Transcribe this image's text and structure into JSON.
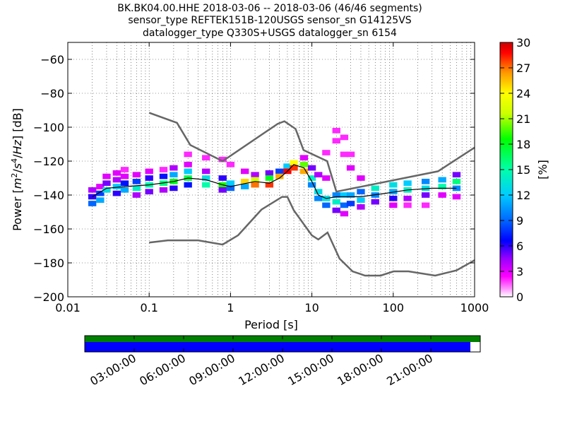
{
  "chart_data": {
    "type": "heatmap",
    "title_lines": [
      "BK.BK04.00.HHE   2018-03-06 -- 2018-03-06  (46/46 segments)",
      "sensor_type REFTEK151B-120USGS sensor_sn G14125VS",
      "datalogger_type Q330S+USGS datalogger_sn 6154"
    ],
    "xlabel": "Period [s]",
    "ylabel": "Power [m²/s⁴/Hz] [dB]",
    "x_scale": "log",
    "xlim": [
      0.01,
      1000
    ],
    "ylim": [
      -200,
      -50
    ],
    "x_ticks": [
      {
        "value": 0.01,
        "label": "0.01"
      },
      {
        "value": 0.1,
        "label": "0.1"
      },
      {
        "value": 1,
        "label": "1"
      },
      {
        "value": 10,
        "label": "10"
      },
      {
        "value": 100,
        "label": "100"
      },
      {
        "value": 1000,
        "label": "1000"
      }
    ],
    "y_ticks": [
      {
        "value": -60,
        "label": "−60"
      },
      {
        "value": -80,
        "label": "−80"
      },
      {
        "value": -100,
        "label": "−100"
      },
      {
        "value": -120,
        "label": "−120"
      },
      {
        "value": -140,
        "label": "−140"
      },
      {
        "value": -160,
        "label": "−160"
      },
      {
        "value": -180,
        "label": "−180"
      },
      {
        "value": -200,
        "label": "−200"
      }
    ],
    "grid": true,
    "colorbar": {
      "label": "[%]",
      "min": 0,
      "max": 30,
      "ticks": [
        "0",
        "3",
        "6",
        "9",
        "12",
        "15",
        "18",
        "21",
        "24",
        "27",
        "30"
      ]
    },
    "noise_models": [
      {
        "name": "NHNM",
        "points": [
          [
            0.1,
            -91.5
          ],
          [
            0.22,
            -97.4
          ],
          [
            0.32,
            -110.5
          ],
          [
            0.8,
            -120
          ],
          [
            3.8,
            -98
          ],
          [
            4.6,
            -96.5
          ],
          [
            6.3,
            -101
          ],
          [
            7.9,
            -113.5
          ],
          [
            15.4,
            -120
          ],
          [
            20,
            -138
          ],
          [
            354.8,
            -126
          ],
          [
            1000,
            -112
          ]
        ]
      },
      {
        "name": "NLNM",
        "points": [
          [
            0.1,
            -168
          ],
          [
            0.17,
            -166.7
          ],
          [
            0.4,
            -166.7
          ],
          [
            0.8,
            -169.2
          ],
          [
            1.24,
            -163.7
          ],
          [
            2.4,
            -148.6
          ],
          [
            4.3,
            -141.1
          ],
          [
            5,
            -141.1
          ],
          [
            6,
            -149
          ],
          [
            10,
            -163.8
          ],
          [
            12,
            -166.2
          ],
          [
            15.6,
            -162.1
          ],
          [
            21.9,
            -177.5
          ],
          [
            31.6,
            -185
          ],
          [
            45,
            -187.5
          ],
          [
            70,
            -187.5
          ],
          [
            101,
            -185
          ],
          [
            154,
            -185
          ],
          [
            328,
            -187.5
          ],
          [
            600,
            -184.4
          ],
          [
            1000,
            -178.4
          ]
        ]
      }
    ],
    "mean_curve": [
      [
        0.02,
        -141
      ],
      [
        0.03,
        -136
      ],
      [
        0.05,
        -135
      ],
      [
        0.1,
        -134
      ],
      [
        0.2,
        -132
      ],
      [
        0.3,
        -130
      ],
      [
        0.5,
        -131
      ],
      [
        0.8,
        -134
      ],
      [
        1,
        -135
      ],
      [
        2,
        -132
      ],
      [
        3,
        -133
      ],
      [
        4,
        -130
      ],
      [
        5,
        -126
      ],
      [
        6,
        -122
      ],
      [
        8,
        -124
      ],
      [
        10,
        -132
      ],
      [
        12,
        -140
      ],
      [
        15,
        -142
      ],
      [
        20,
        -141
      ],
      [
        40,
        -141
      ],
      [
        80,
        -139
      ],
      [
        150,
        -137
      ],
      [
        300,
        -136
      ],
      [
        600,
        -136
      ]
    ],
    "psd_cells": [
      {
        "period": 0.02,
        "db": -141,
        "percent": 6
      },
      {
        "period": 0.02,
        "db": -137,
        "percent": 4
      },
      {
        "period": 0.02,
        "db": -145,
        "percent": 9
      },
      {
        "period": 0.025,
        "db": -139,
        "percent": 8
      },
      {
        "period": 0.025,
        "db": -135,
        "percent": 3
      },
      {
        "period": 0.025,
        "db": -143,
        "percent": 11
      },
      {
        "period": 0.03,
        "db": -133,
        "percent": 5
      },
      {
        "period": 0.03,
        "db": -137,
        "percent": 13
      },
      {
        "period": 0.03,
        "db": -129,
        "percent": 3
      },
      {
        "period": 0.04,
        "db": -131,
        "percent": 4
      },
      {
        "period": 0.04,
        "db": -135,
        "percent": 12
      },
      {
        "period": 0.04,
        "db": -127,
        "percent": 3
      },
      {
        "period": 0.04,
        "db": -139,
        "percent": 6
      },
      {
        "period": 0.05,
        "db": -129,
        "percent": 3
      },
      {
        "period": 0.05,
        "db": -133,
        "percent": 7
      },
      {
        "period": 0.05,
        "db": -137,
        "percent": 11
      },
      {
        "period": 0.05,
        "db": -125,
        "percent": 2
      },
      {
        "period": 0.07,
        "db": -128,
        "percent": 3
      },
      {
        "period": 0.07,
        "db": -132,
        "percent": 8
      },
      {
        "period": 0.07,
        "db": -136,
        "percent": 14
      },
      {
        "period": 0.07,
        "db": -140,
        "percent": 4
      },
      {
        "period": 0.1,
        "db": -126,
        "percent": 3
      },
      {
        "period": 0.1,
        "db": -130,
        "percent": 6
      },
      {
        "period": 0.1,
        "db": -134,
        "percent": 15
      },
      {
        "period": 0.1,
        "db": -138,
        "percent": 5
      },
      {
        "period": 0.15,
        "db": -125,
        "percent": 2
      },
      {
        "period": 0.15,
        "db": -129,
        "percent": 7
      },
      {
        "period": 0.15,
        "db": -133,
        "percent": 16
      },
      {
        "period": 0.15,
        "db": -137,
        "percent": 4
      },
      {
        "period": 0.2,
        "db": -124,
        "percent": 4
      },
      {
        "period": 0.2,
        "db": -128,
        "percent": 11
      },
      {
        "period": 0.2,
        "db": -132,
        "percent": 18
      },
      {
        "period": 0.2,
        "db": -136,
        "percent": 6
      },
      {
        "period": 0.3,
        "db": -116,
        "percent": 2
      },
      {
        "period": 0.3,
        "db": -122,
        "percent": 3
      },
      {
        "period": 0.3,
        "db": -126,
        "percent": 12
      },
      {
        "period": 0.3,
        "db": -130,
        "percent": 17
      },
      {
        "period": 0.3,
        "db": -134,
        "percent": 7
      },
      {
        "period": 0.5,
        "db": -118,
        "percent": 2
      },
      {
        "period": 0.5,
        "db": -126,
        "percent": 4
      },
      {
        "period": 0.5,
        "db": -130,
        "percent": 13
      },
      {
        "period": 0.5,
        "db": -134,
        "percent": 15
      },
      {
        "period": 0.8,
        "db": -119,
        "percent": 2
      },
      {
        "period": 0.8,
        "db": -130,
        "percent": 6
      },
      {
        "period": 0.8,
        "db": -134,
        "percent": 19
      },
      {
        "period": 0.8,
        "db": -137,
        "percent": 5
      },
      {
        "period": 1,
        "db": -122,
        "percent": 2
      },
      {
        "period": 1,
        "db": -133,
        "percent": 12
      },
      {
        "period": 1,
        "db": -136,
        "percent": 9
      },
      {
        "period": 1.5,
        "db": -126,
        "percent": 3
      },
      {
        "period": 1.5,
        "db": -132,
        "percent": 25
      },
      {
        "period": 1.5,
        "db": -135,
        "percent": 11
      },
      {
        "period": 2,
        "db": -128,
        "percent": 4
      },
      {
        "period": 2,
        "db": -131,
        "percent": 22
      },
      {
        "period": 2,
        "db": -134,
        "percent": 27
      },
      {
        "period": 3,
        "db": -127,
        "percent": 5
      },
      {
        "period": 3,
        "db": -130,
        "percent": 18
      },
      {
        "period": 3,
        "db": -134,
        "percent": 28
      },
      {
        "period": 4,
        "db": -126,
        "percent": 8
      },
      {
        "period": 4,
        "db": -129,
        "percent": 26
      },
      {
        "period": 5,
        "db": -123,
        "percent": 12
      },
      {
        "period": 5,
        "db": -126,
        "percent": 29
      },
      {
        "period": 6,
        "db": -121,
        "percent": 24
      },
      {
        "period": 6,
        "db": -124,
        "percent": 28
      },
      {
        "period": 8,
        "db": -122,
        "percent": 20
      },
      {
        "period": 8,
        "db": -126,
        "percent": 26
      },
      {
        "period": 8,
        "db": -118,
        "percent": 3
      },
      {
        "period": 10,
        "db": -124,
        "percent": 5
      },
      {
        "period": 10,
        "db": -130,
        "percent": 14
      },
      {
        "period": 10,
        "db": -134,
        "percent": 10
      },
      {
        "period": 12,
        "db": -128,
        "percent": 4
      },
      {
        "period": 12,
        "db": -138,
        "percent": 13
      },
      {
        "period": 12,
        "db": -142,
        "percent": 10
      },
      {
        "period": 15,
        "db": -115,
        "percent": 2
      },
      {
        "period": 15,
        "db": -142,
        "percent": 13
      },
      {
        "period": 15,
        "db": -146,
        "percent": 9
      },
      {
        "period": 15,
        "db": -130,
        "percent": 3
      },
      {
        "period": 20,
        "db": -102,
        "percent": 2
      },
      {
        "period": 20,
        "db": -108,
        "percent": 2
      },
      {
        "period": 20,
        "db": -140,
        "percent": 10
      },
      {
        "period": 20,
        "db": -144,
        "percent": 14
      },
      {
        "period": 20,
        "db": -149,
        "percent": 5
      },
      {
        "period": 25,
        "db": -106,
        "percent": 2
      },
      {
        "period": 25,
        "db": -116,
        "percent": 2
      },
      {
        "period": 25,
        "db": -140,
        "percent": 12
      },
      {
        "period": 25,
        "db": -146,
        "percent": 9
      },
      {
        "period": 25,
        "db": -151,
        "percent": 3
      },
      {
        "period": 30,
        "db": -116,
        "percent": 2
      },
      {
        "period": 30,
        "db": -124,
        "percent": 3
      },
      {
        "period": 30,
        "db": -140,
        "percent": 11
      },
      {
        "period": 30,
        "db": -145,
        "percent": 8
      },
      {
        "period": 40,
        "db": -130,
        "percent": 3
      },
      {
        "period": 40,
        "db": -138,
        "percent": 9
      },
      {
        "period": 40,
        "db": -143,
        "percent": 12
      },
      {
        "period": 40,
        "db": -147,
        "percent": 4
      },
      {
        "period": 60,
        "db": -136,
        "percent": 14
      },
      {
        "period": 60,
        "db": -140,
        "percent": 10
      },
      {
        "period": 60,
        "db": -144,
        "percent": 5
      },
      {
        "period": 100,
        "db": -134,
        "percent": 13
      },
      {
        "period": 100,
        "db": -138,
        "percent": 11
      },
      {
        "period": 100,
        "db": -142,
        "percent": 6
      },
      {
        "period": 100,
        "db": -146,
        "percent": 3
      },
      {
        "period": 150,
        "db": -133,
        "percent": 12
      },
      {
        "period": 150,
        "db": -137,
        "percent": 14
      },
      {
        "period": 150,
        "db": -142,
        "percent": 4
      },
      {
        "period": 150,
        "db": -146,
        "percent": 2
      },
      {
        "period": 250,
        "db": -132,
        "percent": 10
      },
      {
        "period": 250,
        "db": -136,
        "percent": 13
      },
      {
        "period": 250,
        "db": -140,
        "percent": 5
      },
      {
        "period": 250,
        "db": -146,
        "percent": 2
      },
      {
        "period": 400,
        "db": -131,
        "percent": 11
      },
      {
        "period": 400,
        "db": -135,
        "percent": 15
      },
      {
        "period": 400,
        "db": -140,
        "percent": 3
      },
      {
        "period": 600,
        "db": -128,
        "percent": 5
      },
      {
        "period": 600,
        "db": -132,
        "percent": 16
      },
      {
        "period": 600,
        "db": -136,
        "percent": 10
      },
      {
        "period": 600,
        "db": -141,
        "percent": 3
      }
    ],
    "coverage": {
      "time_ticks": [
        "03:00:00",
        "06:00:00",
        "09:00:00",
        "12:00:00",
        "15:00:00",
        "18:00:00",
        "21:00:00"
      ],
      "data_fraction": 0.975,
      "colors": {
        "available": "#008000",
        "used": "#0000ff"
      }
    }
  }
}
